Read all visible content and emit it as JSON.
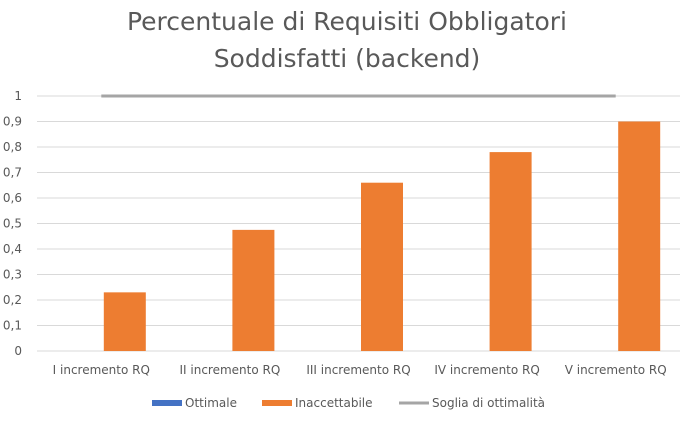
{
  "chart_data": {
    "type": "bar",
    "title_lines": [
      "Percentuale di Requisiti Obbligatori",
      "Soddisfatti (backend)"
    ],
    "categories": [
      "I incremento RQ",
      "II incremento RQ",
      "III incremento RQ",
      "IV incremento RQ",
      "V incremento RQ"
    ],
    "y_tick_labels": [
      "0",
      "0,1",
      "0,2",
      "0,3",
      "0,4",
      "0,5",
      "0,6",
      "0,7",
      "0,8",
      "0,9",
      "1"
    ],
    "ylim": [
      0,
      1
    ],
    "grid": true,
    "legend_position": "bottom",
    "series": [
      {
        "name": "Ottimale",
        "type": "bar",
        "color": "#4472C4",
        "values": [
          0,
          0,
          0,
          0,
          0
        ]
      },
      {
        "name": "Inaccettabile",
        "type": "bar",
        "color": "#ED7D31",
        "values": [
          0.23,
          0.475,
          0.66,
          0.78,
          0.9
        ]
      },
      {
        "name": "Soglia di ottimalità",
        "type": "line",
        "color": "#A5A5A5",
        "values": [
          1,
          1,
          1,
          1,
          1
        ]
      }
    ]
  }
}
